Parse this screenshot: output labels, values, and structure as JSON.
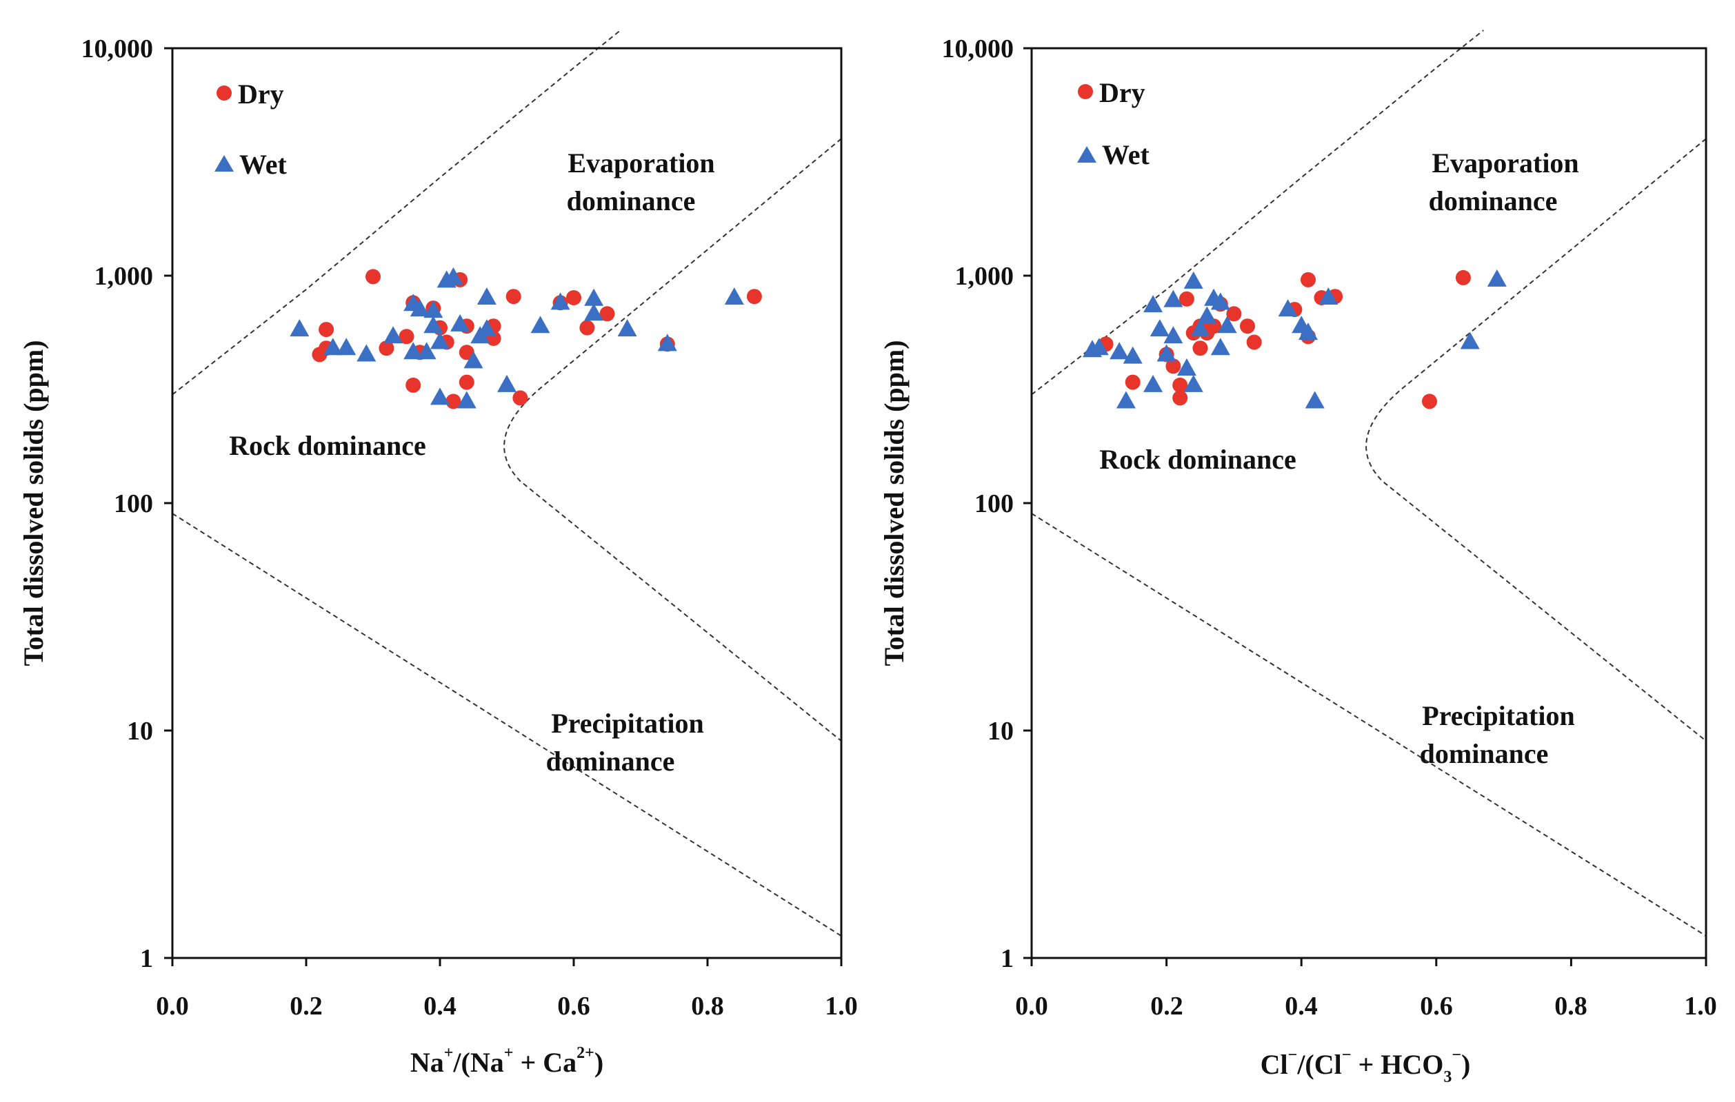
{
  "colors": {
    "dry": "#e8352b",
    "wet": "#3a6fc4",
    "axis": "#111111",
    "curve": "#333333"
  },
  "chart_data": [
    {
      "type": "scatter",
      "title": "",
      "xlabel": "Na⁺/(Na⁺ + Ca²⁺)",
      "xlabel_parts": {
        "a": "Na",
        "b": "/(Na",
        "c": " + Ca",
        "d": ")",
        "sup1": "+",
        "sup2": "+",
        "sup3": "2+"
      },
      "ylabel": "Total dissolved solids (ppm)",
      "xlim": [
        0,
        1
      ],
      "ylim": [
        1,
        10000
      ],
      "yscale": "log",
      "x_tick_labels": [
        "0.0",
        "0.2",
        "0.4",
        "0.6",
        "0.8",
        "1.0"
      ],
      "y_tick_labels": [
        "1",
        "10",
        "100",
        "1,000",
        "10,000"
      ],
      "legend": {
        "position": "top-left",
        "entries": [
          "Dry",
          "Wet"
        ]
      },
      "annotations": {
        "evaporation": [
          "Evaporation",
          "dominance"
        ],
        "rock": [
          "Rock dominance"
        ],
        "precipitation": [
          "Precipitation",
          "dominance"
        ]
      },
      "series": [
        {
          "name": "Dry",
          "marker": "circle",
          "points": [
            [
              0.22,
              450
            ],
            [
              0.23,
              580
            ],
            [
              0.23,
              480
            ],
            [
              0.3,
              990
            ],
            [
              0.32,
              480
            ],
            [
              0.35,
              540
            ],
            [
              0.36,
              760
            ],
            [
              0.36,
              330
            ],
            [
              0.37,
              460
            ],
            [
              0.39,
              720
            ],
            [
              0.4,
              590
            ],
            [
              0.41,
              510
            ],
            [
              0.42,
              280
            ],
            [
              0.43,
              960
            ],
            [
              0.44,
              600
            ],
            [
              0.44,
              340
            ],
            [
              0.44,
              460
            ],
            [
              0.48,
              600
            ],
            [
              0.48,
              530
            ],
            [
              0.51,
              810
            ],
            [
              0.52,
              290
            ],
            [
              0.58,
              760
            ],
            [
              0.6,
              800
            ],
            [
              0.62,
              590
            ],
            [
              0.65,
              680
            ],
            [
              0.74,
              500
            ],
            [
              0.87,
              810
            ]
          ]
        },
        {
          "name": "Wet",
          "marker": "triangle",
          "points": [
            [
              0.19,
              580
            ],
            [
              0.24,
              480
            ],
            [
              0.26,
              480
            ],
            [
              0.29,
              450
            ],
            [
              0.33,
              540
            ],
            [
              0.36,
              460
            ],
            [
              0.36,
              750
            ],
            [
              0.37,
              710
            ],
            [
              0.38,
              460
            ],
            [
              0.39,
              700
            ],
            [
              0.39,
              600
            ],
            [
              0.4,
              510
            ],
            [
              0.4,
              290
            ],
            [
              0.41,
              950
            ],
            [
              0.42,
              980
            ],
            [
              0.43,
              610
            ],
            [
              0.44,
              280
            ],
            [
              0.45,
              420
            ],
            [
              0.46,
              540
            ],
            [
              0.47,
              800
            ],
            [
              0.47,
              580
            ],
            [
              0.5,
              330
            ],
            [
              0.55,
              600
            ],
            [
              0.58,
              760
            ],
            [
              0.63,
              790
            ],
            [
              0.63,
              680
            ],
            [
              0.68,
              580
            ],
            [
              0.74,
              500
            ],
            [
              0.84,
              800
            ]
          ]
        }
      ]
    },
    {
      "type": "scatter",
      "title": "",
      "xlabel": "Cl⁻/(Cl⁻ + HCO₃⁻)",
      "xlabel_parts": {
        "a": "Cl",
        "b": "/(Cl",
        "c": " + HCO",
        "sub": "3",
        "d": ")",
        "sup1": "−",
        "sup2": "−",
        "sup3": "−"
      },
      "ylabel": "Total dissolved solids (ppm)",
      "xlim": [
        0,
        1
      ],
      "ylim": [
        1,
        10000
      ],
      "yscale": "log",
      "x_tick_labels": [
        "0.0",
        "0.2",
        "0.4",
        "0.6",
        "0.8",
        "1.0"
      ],
      "y_tick_labels": [
        "1",
        "10",
        "100",
        "1,000",
        "10,000"
      ],
      "legend": {
        "position": "top-left",
        "entries": [
          "Dry",
          "Wet"
        ]
      },
      "annotations": {
        "evaporation": [
          "Evaporation",
          "dominance"
        ],
        "rock": [
          "Rock dominance"
        ],
        "precipitation": [
          "Precipitation",
          "dominance"
        ]
      },
      "series": [
        {
          "name": "Dry",
          "marker": "circle",
          "points": [
            [
              0.11,
              500
            ],
            [
              0.15,
              340
            ],
            [
              0.2,
              450
            ],
            [
              0.21,
              400
            ],
            [
              0.22,
              330
            ],
            [
              0.22,
              290
            ],
            [
              0.23,
              790
            ],
            [
              0.24,
              560
            ],
            [
              0.25,
              600
            ],
            [
              0.25,
              480
            ],
            [
              0.26,
              560
            ],
            [
              0.27,
              600
            ],
            [
              0.28,
              750
            ],
            [
              0.3,
              680
            ],
            [
              0.32,
              600
            ],
            [
              0.33,
              510
            ],
            [
              0.39,
              710
            ],
            [
              0.41,
              960
            ],
            [
              0.41,
              540
            ],
            [
              0.43,
              800
            ],
            [
              0.45,
              810
            ],
            [
              0.59,
              280
            ],
            [
              0.64,
              980
            ]
          ]
        },
        {
          "name": "Wet",
          "marker": "triangle",
          "points": [
            [
              0.09,
              470
            ],
            [
              0.1,
              480
            ],
            [
              0.13,
              460
            ],
            [
              0.14,
              280
            ],
            [
              0.15,
              440
            ],
            [
              0.18,
              740
            ],
            [
              0.18,
              330
            ],
            [
              0.19,
              580
            ],
            [
              0.2,
              450
            ],
            [
              0.21,
              780
            ],
            [
              0.21,
              540
            ],
            [
              0.23,
              390
            ],
            [
              0.24,
              940
            ],
            [
              0.24,
              330
            ],
            [
              0.25,
              580
            ],
            [
              0.26,
              660
            ],
            [
              0.27,
              790
            ],
            [
              0.28,
              760
            ],
            [
              0.28,
              480
            ],
            [
              0.29,
              600
            ],
            [
              0.38,
              710
            ],
            [
              0.4,
              600
            ],
            [
              0.41,
              560
            ],
            [
              0.42,
              280
            ],
            [
              0.44,
              800
            ],
            [
              0.65,
              510
            ],
            [
              0.69,
              960
            ]
          ]
        }
      ]
    }
  ]
}
